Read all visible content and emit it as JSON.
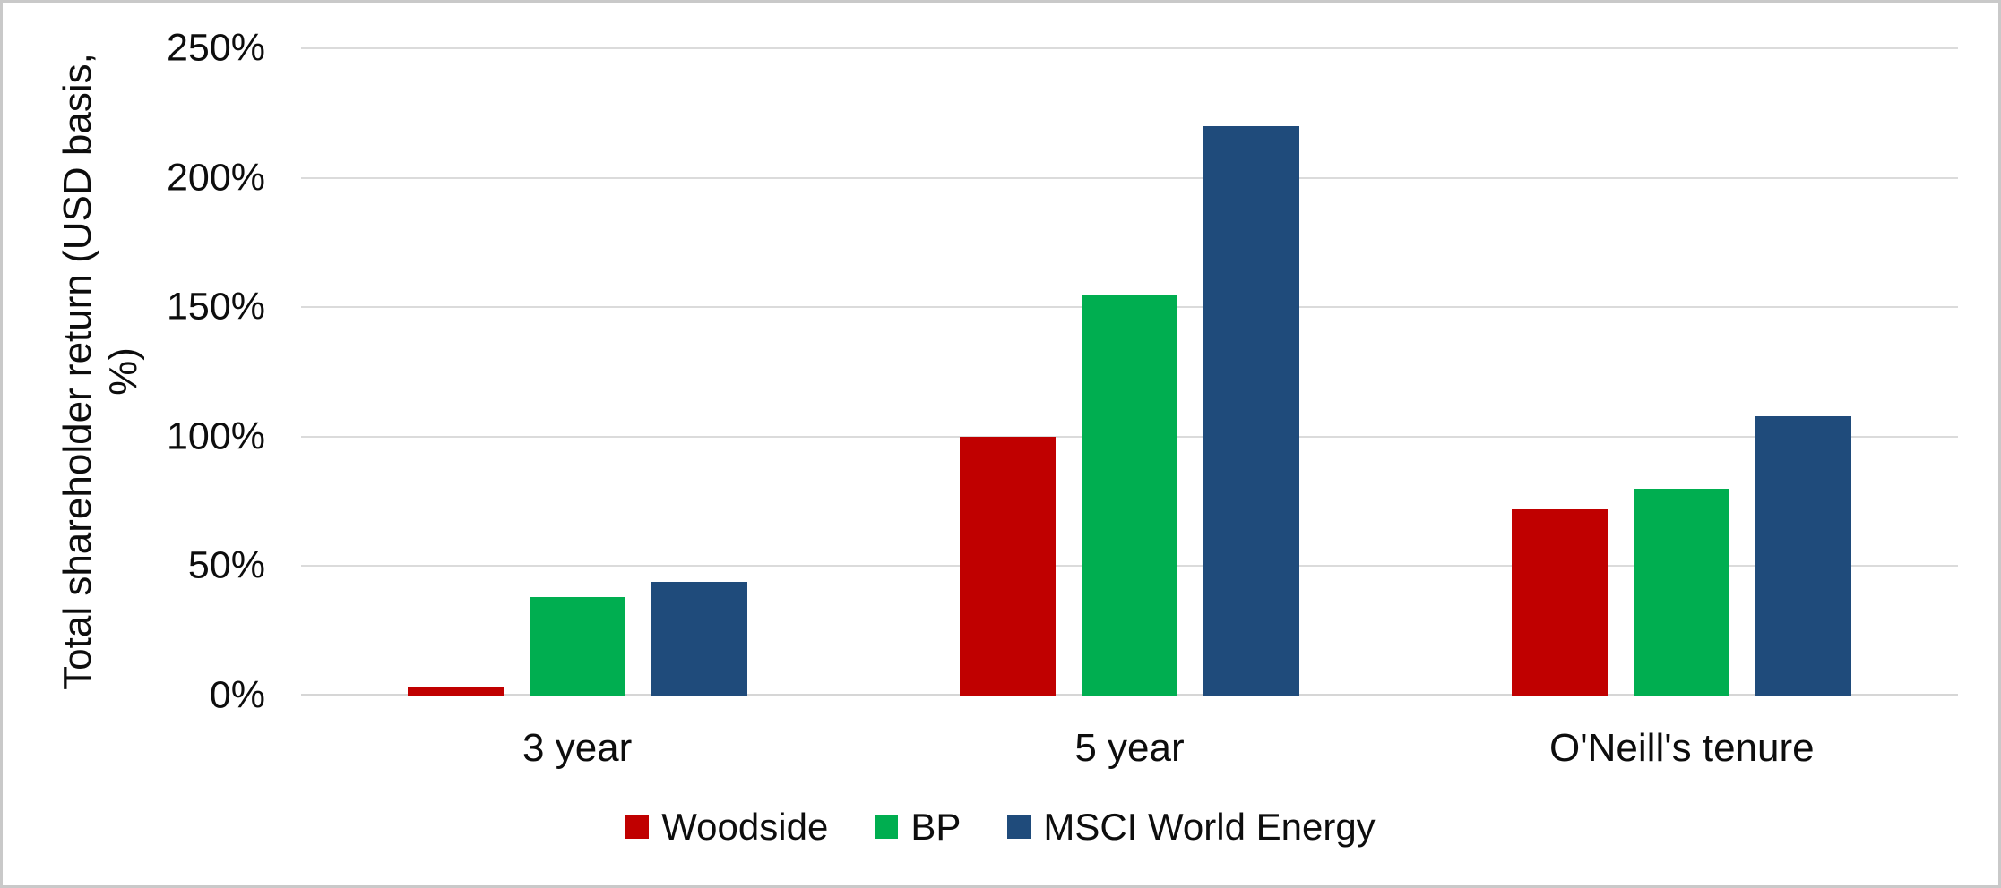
{
  "chart_data": {
    "type": "bar",
    "title": "",
    "categories": [
      "3 year",
      "5 year",
      "O'Neill's tenure"
    ],
    "series": [
      {
        "name": "Woodside",
        "color": "#c00000",
        "values": [
          3,
          100,
          72
        ]
      },
      {
        "name": "BP",
        "color": "#00ae50",
        "values": [
          38,
          155,
          80
        ]
      },
      {
        "name": "MSCI World Energy",
        "color": "#1f4b7b",
        "values": [
          44,
          220,
          108
        ]
      }
    ],
    "xlabel": "",
    "ylabel": "Total shareholder return (USD basis,\n%)",
    "ylim": [
      0,
      250
    ],
    "yticks": [
      0,
      50,
      100,
      150,
      200,
      250
    ],
    "ytick_suffix": "%",
    "grid": true,
    "legend_position": "bottom"
  },
  "frame": {
    "border_color": "#c9c9c9",
    "gridline_color": "#dbdbdb"
  }
}
